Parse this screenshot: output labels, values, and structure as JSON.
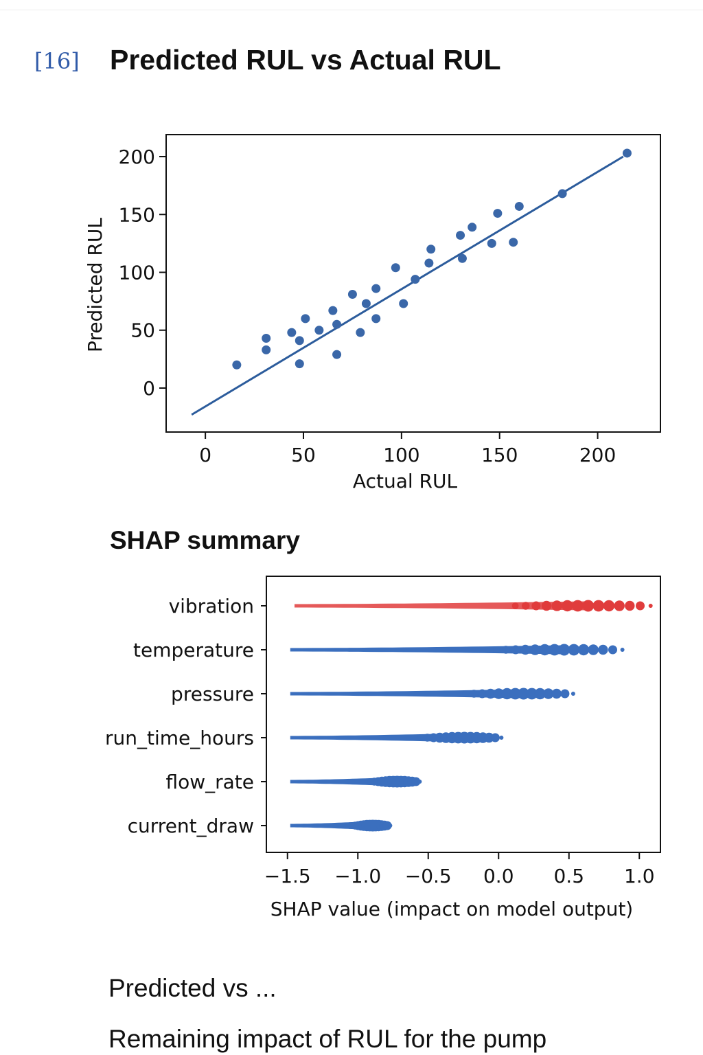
{
  "cell_label": "[16]",
  "title": "Predicted RUL vs Actual RUL",
  "section_title": "SHAP summary",
  "text_lines": [
    "Predicted vs ...",
    "Remaining impact of RUL for the pump"
  ],
  "colors": {
    "point": "#3a67a8",
    "line": "#2c5c9c",
    "shap_blue": "#3b6fbe",
    "shap_red": "#e03c3c",
    "cell_label": "#2f5aa8"
  },
  "chart_data": [
    {
      "type": "scatter",
      "title": "",
      "xlabel": "Actual RUL",
      "ylabel": "Predicted RUL",
      "xlim": [
        -20,
        232
      ],
      "ylim": [
        -38,
        219
      ],
      "xticks": [
        "0",
        "50",
        "100",
        "150",
        "200"
      ],
      "yticks": [
        "0",
        "50",
        "100",
        "150",
        "200"
      ],
      "grid": false,
      "points": [
        [
          16,
          20
        ],
        [
          31,
          43
        ],
        [
          31,
          33
        ],
        [
          44,
          48
        ],
        [
          48,
          41
        ],
        [
          48,
          21
        ],
        [
          51,
          60
        ],
        [
          58,
          50
        ],
        [
          65,
          67
        ],
        [
          67,
          55
        ],
        [
          67,
          29
        ],
        [
          75,
          81
        ],
        [
          79,
          48
        ],
        [
          82,
          73
        ],
        [
          87,
          86
        ],
        [
          87,
          60
        ],
        [
          97,
          104
        ],
        [
          101,
          73
        ],
        [
          107,
          94
        ],
        [
          114,
          108
        ],
        [
          115,
          120
        ],
        [
          130,
          132
        ],
        [
          131,
          112
        ],
        [
          136,
          139
        ],
        [
          146,
          125
        ],
        [
          149,
          151
        ],
        [
          157,
          126
        ],
        [
          160,
          157
        ],
        [
          182,
          168
        ],
        [
          215,
          203
        ]
      ],
      "fit_line": {
        "x": [
          -7,
          213
        ],
        "y": [
          -23,
          200
        ]
      }
    },
    {
      "type": "scatter",
      "title": "SHAP summary",
      "xlabel": "SHAP value (impact on model output)",
      "xlim": [
        -1.65,
        1.15
      ],
      "xticks": [
        "−1.5",
        "−1.0",
        "−0.5",
        "0.0",
        "0.5",
        "1.0"
      ],
      "features": [
        {
          "name": "vibration",
          "min": -1.45,
          "max": 1.08,
          "color": "#e03c3c"
        },
        {
          "name": "temperature",
          "min": -1.48,
          "max": 0.88,
          "color": "#3b6fbe"
        },
        {
          "name": "pressure",
          "min": -1.48,
          "max": 0.53,
          "color": "#3b6fbe"
        },
        {
          "name": "run_time_hours",
          "min": -1.48,
          "max": 0.02,
          "color": "#3b6fbe"
        },
        {
          "name": "flow_rate",
          "min": -1.48,
          "max": -0.56,
          "color": "#3b6fbe"
        },
        {
          "name": "current_draw",
          "min": -1.48,
          "max": -0.77,
          "color": "#3b6fbe"
        }
      ]
    }
  ]
}
